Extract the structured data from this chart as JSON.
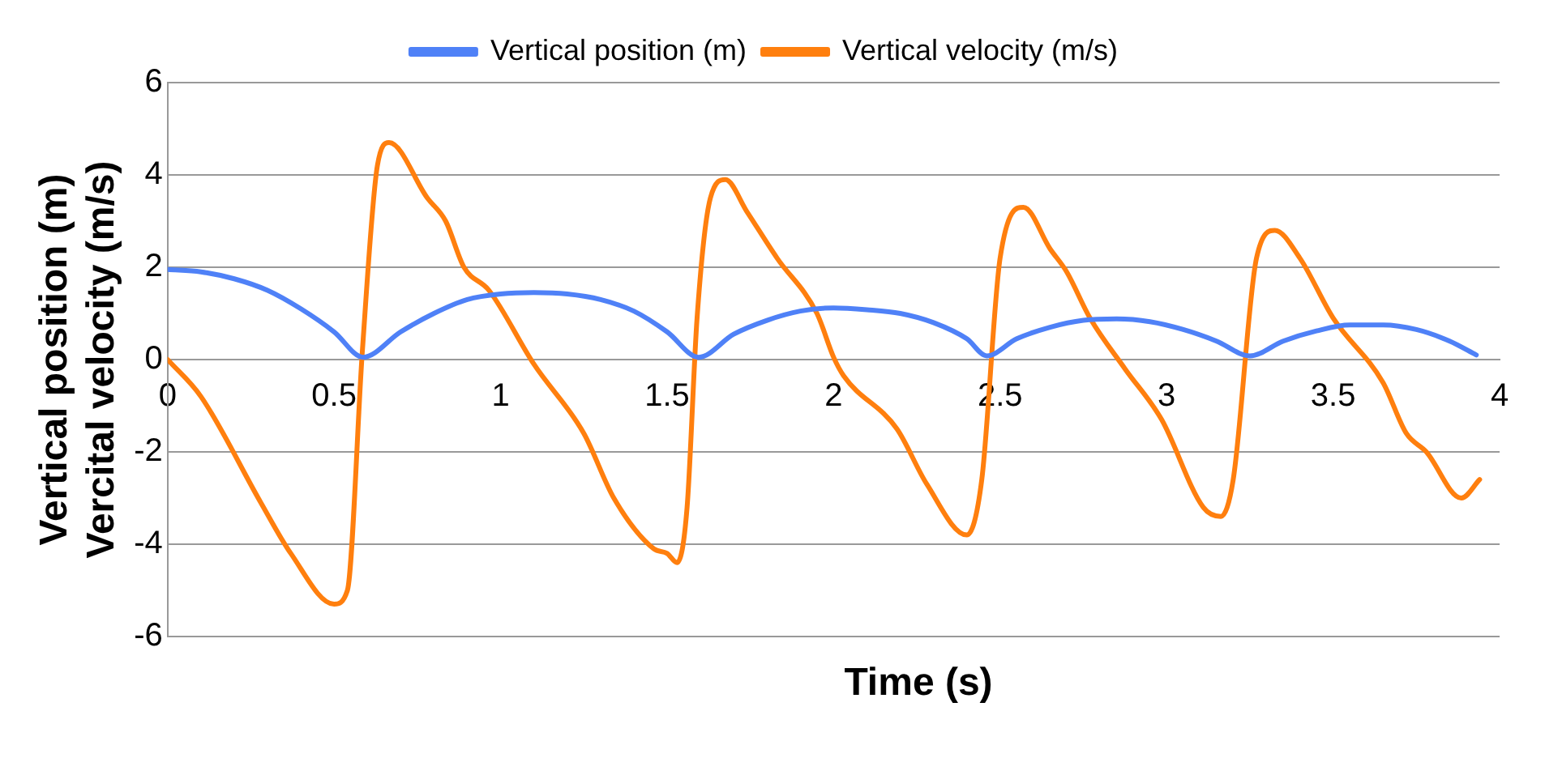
{
  "chart_data": {
    "type": "line",
    "xlabel": "Time (s)",
    "ylabel": "Vertical position (m)\nVercital velocity (m/s)",
    "xlim": [
      0,
      4
    ],
    "xticks": [
      0,
      0.5,
      1,
      1.5,
      2,
      2.5,
      3,
      3.5,
      4
    ],
    "ylim": [
      -6,
      6
    ],
    "yticks": [
      -6,
      -4,
      -2,
      0,
      2,
      4,
      6
    ],
    "grid": "y",
    "legend": "top",
    "marker": "none",
    "line_style": "solid",
    "series": [
      {
        "name": "Vertical position (m)",
        "color": "#4f81f7",
        "x": [
          0,
          0.1,
          0.2,
          0.3,
          0.4,
          0.5,
          0.587,
          0.7,
          0.8,
          0.9,
          1.0,
          1.1,
          1.2,
          1.3,
          1.4,
          1.5,
          1.595,
          1.7,
          1.8,
          1.9,
          2.0,
          2.1,
          2.2,
          2.3,
          2.4,
          2.46,
          2.55,
          2.65,
          2.75,
          2.85,
          2.95,
          3.05,
          3.15,
          3.25,
          3.35,
          3.45,
          3.55,
          3.65,
          3.75,
          3.85,
          3.93
        ],
        "values": [
          1.95,
          1.9,
          1.75,
          1.5,
          1.1,
          0.6,
          0.05,
          0.6,
          1.0,
          1.3,
          1.42,
          1.45,
          1.42,
          1.3,
          1.05,
          0.6,
          0.05,
          0.55,
          0.85,
          1.05,
          1.12,
          1.08,
          1.0,
          0.8,
          0.45,
          0.08,
          0.45,
          0.7,
          0.85,
          0.88,
          0.82,
          0.65,
          0.4,
          0.08,
          0.4,
          0.62,
          0.75,
          0.75,
          0.65,
          0.4,
          0.1
        ]
      },
      {
        "name": "Vertical velocity (m/s)",
        "color": "#ff7f0e",
        "x": [
          0,
          0.1,
          0.28,
          0.37,
          0.5,
          0.54,
          0.585,
          0.63,
          0.665,
          0.78,
          0.835,
          0.89,
          0.965,
          1.1,
          1.25,
          1.34,
          1.46,
          1.5,
          1.53,
          1.56,
          1.59,
          1.63,
          1.675,
          1.74,
          1.83,
          1.95,
          2.0,
          2.03,
          2.19,
          2.28,
          2.4,
          2.445,
          2.5,
          2.57,
          2.65,
          2.7,
          2.77,
          2.875,
          2.985,
          3.11,
          3.163,
          3.2,
          3.27,
          3.325,
          3.4,
          3.5,
          3.65,
          3.72,
          3.78,
          3.885,
          3.94
        ],
        "values": [
          0,
          -0.8,
          -3.1,
          -4.2,
          -5.3,
          -5.0,
          0.2,
          4.2,
          4.7,
          3.5,
          3.0,
          2.0,
          1.5,
          -0.1,
          -1.6,
          -3.0,
          -4.1,
          -4.2,
          -4.4,
          -3.2,
          0.9,
          3.5,
          3.9,
          3.2,
          2.2,
          1.0,
          0.05,
          -0.35,
          -1.5,
          -2.7,
          -3.8,
          -2.6,
          2.2,
          3.3,
          2.4,
          1.9,
          0.9,
          -0.2,
          -1.3,
          -3.2,
          -3.4,
          -2.6,
          2.2,
          2.8,
          2.2,
          0.9,
          -0.5,
          -1.6,
          -2.0,
          -3.0,
          -2.6
        ]
      }
    ]
  }
}
